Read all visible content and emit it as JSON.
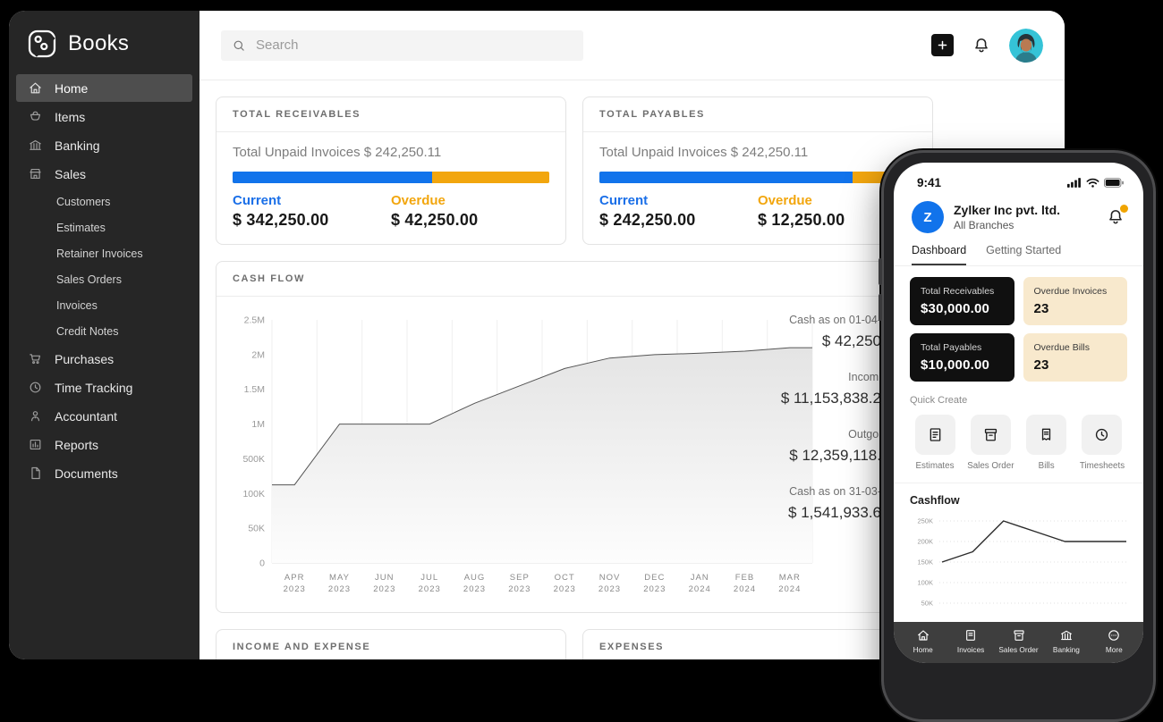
{
  "app": {
    "name": "Books"
  },
  "colors": {
    "blue": "#1173eb",
    "amber": "#f2a60e",
    "sidebar_bg": "#262626",
    "black_card": "#101010",
    "cream_card": "#f8e9cd",
    "avatar_bg": "#35c3d7",
    "notification_dot": "#f0a400"
  },
  "sidebar": {
    "logo_text": "Books",
    "items": [
      {
        "label": "Home",
        "icon": "home-icon",
        "active": true
      },
      {
        "label": "Items",
        "icon": "items-icon"
      },
      {
        "label": "Banking",
        "icon": "bank-icon"
      },
      {
        "label": "Sales",
        "icon": "store-icon",
        "children": [
          "Customers",
          "Estimates",
          "Retainer Invoices",
          "Sales Orders",
          "Invoices",
          "Credit Notes"
        ]
      },
      {
        "label": "Purchases",
        "icon": "cart-icon"
      },
      {
        "label": "Time Tracking",
        "icon": "clock-icon"
      },
      {
        "label": "Accountant",
        "icon": "person-icon"
      },
      {
        "label": "Reports",
        "icon": "reports-icon"
      },
      {
        "label": "Documents",
        "icon": "document-icon"
      }
    ]
  },
  "topbar": {
    "search_placeholder": "Search"
  },
  "receivables": {
    "title": "TOTAL RECEIVABLES",
    "subtitle": "Total Unpaid Invoices $ 242,250.11",
    "current_label": "Current",
    "current_value": "$ 342,250.00",
    "overdue_label": "Overdue",
    "overdue_value": "$ 42,250.00",
    "current_pct": 63
  },
  "payables": {
    "title": "TOTAL PAYABLES",
    "subtitle": "Total Unpaid Invoices $ 242,250.11",
    "current_label": "Current",
    "current_value": "$ 242,250.00",
    "overdue_label": "Overdue",
    "overdue_value": "$ 12,250.00",
    "current_pct": 80
  },
  "cashflow": {
    "title": "CASH FLOW",
    "stats": [
      {
        "label": "Cash as on 01-04-",
        "value": "$ 42,250"
      },
      {
        "label": "Incomi",
        "value": "$ 11,153,838.2"
      },
      {
        "label": "Outgoi",
        "value": "$ 12,359,118."
      },
      {
        "label": "Cash as on 31-03-",
        "value": "$ 1,541,933.6"
      }
    ]
  },
  "bottom": {
    "income_expense_title": "INCOME AND EXPENSE",
    "expenses_title": "EXPENSES"
  },
  "chart_data": [
    {
      "type": "area",
      "title": "CASH FLOW",
      "categories": [
        "APR 2023",
        "MAY 2023",
        "JUN 2023",
        "JUL 2023",
        "AUG 2023",
        "SEP 2023",
        "OCT 2023",
        "NOV 2023",
        "DEC 2023",
        "JAN 2024",
        "FEB 2024",
        "MAR 2024"
      ],
      "values": [
        200000,
        1000000,
        1000000,
        1000000,
        1300000,
        1550000,
        1800000,
        1950000,
        2000000,
        2020000,
        2050000,
        2100000
      ],
      "y_ticks": [
        {
          "label": "2.5M",
          "value": 2500000
        },
        {
          "label": "2M",
          "value": 2000000
        },
        {
          "label": "1.5M",
          "value": 1500000
        },
        {
          "label": "1M",
          "value": 1000000
        },
        {
          "label": "500K",
          "value": 500000
        },
        {
          "label": "100K",
          "value": 100000
        },
        {
          "label": "50K",
          "value": 50000
        },
        {
          "label": "0",
          "value": 0
        }
      ],
      "axis_note": "y ticks equally spaced (non-linear scale)",
      "grid": "vertical",
      "line_color": "#555555",
      "fill": "light-gray-gradient"
    },
    {
      "type": "line",
      "title": "Cashflow",
      "y_ticks": [
        {
          "label": "250K",
          "value": 250000
        },
        {
          "label": "200K",
          "value": 200000
        },
        {
          "label": "150K",
          "value": 150000
        },
        {
          "label": "100K",
          "value": 100000
        },
        {
          "label": "50K",
          "value": 50000
        }
      ],
      "values": [
        150000,
        175000,
        250000,
        225000,
        200000,
        200000,
        200000
      ],
      "ylim": [
        50000,
        250000
      ],
      "grid": "horizontal-dotted",
      "line_color": "#2b2b2b"
    }
  ],
  "phone": {
    "status_time": "9:41",
    "org": {
      "initial": "Z",
      "name": "Zylker Inc pvt. ltd.",
      "branch": "All Branches"
    },
    "tabs": [
      {
        "label": "Dashboard",
        "active": true
      },
      {
        "label": "Getting Started",
        "active": false
      }
    ],
    "summary_cards": [
      {
        "label": "Total Receivables",
        "value": "$30,000.00",
        "style": "dark"
      },
      {
        "label": "Overdue Invoices",
        "value": "23",
        "style": "cream"
      },
      {
        "label": "Total Payables",
        "value": "$10,000.00",
        "style": "dark"
      },
      {
        "label": "Overdue Bills",
        "value": "23",
        "style": "cream"
      }
    ],
    "quick_create": {
      "title": "Quick Create",
      "items": [
        {
          "label": "Estimates",
          "icon": "estimate-icon"
        },
        {
          "label": "Sales Order",
          "icon": "salesorder-icon"
        },
        {
          "label": "Bills",
          "icon": "bills-icon"
        },
        {
          "label": "Timesheets",
          "icon": "clock-icon"
        }
      ]
    },
    "cashflow_title": "Cashflow",
    "nav": [
      {
        "label": "Home",
        "icon": "home-icon"
      },
      {
        "label": "Invoices",
        "icon": "invoice-icon"
      },
      {
        "label": "Sales Order",
        "icon": "salesorder-icon"
      },
      {
        "label": "Banking",
        "icon": "bank-icon"
      },
      {
        "label": "More",
        "icon": "more-icon"
      }
    ]
  }
}
